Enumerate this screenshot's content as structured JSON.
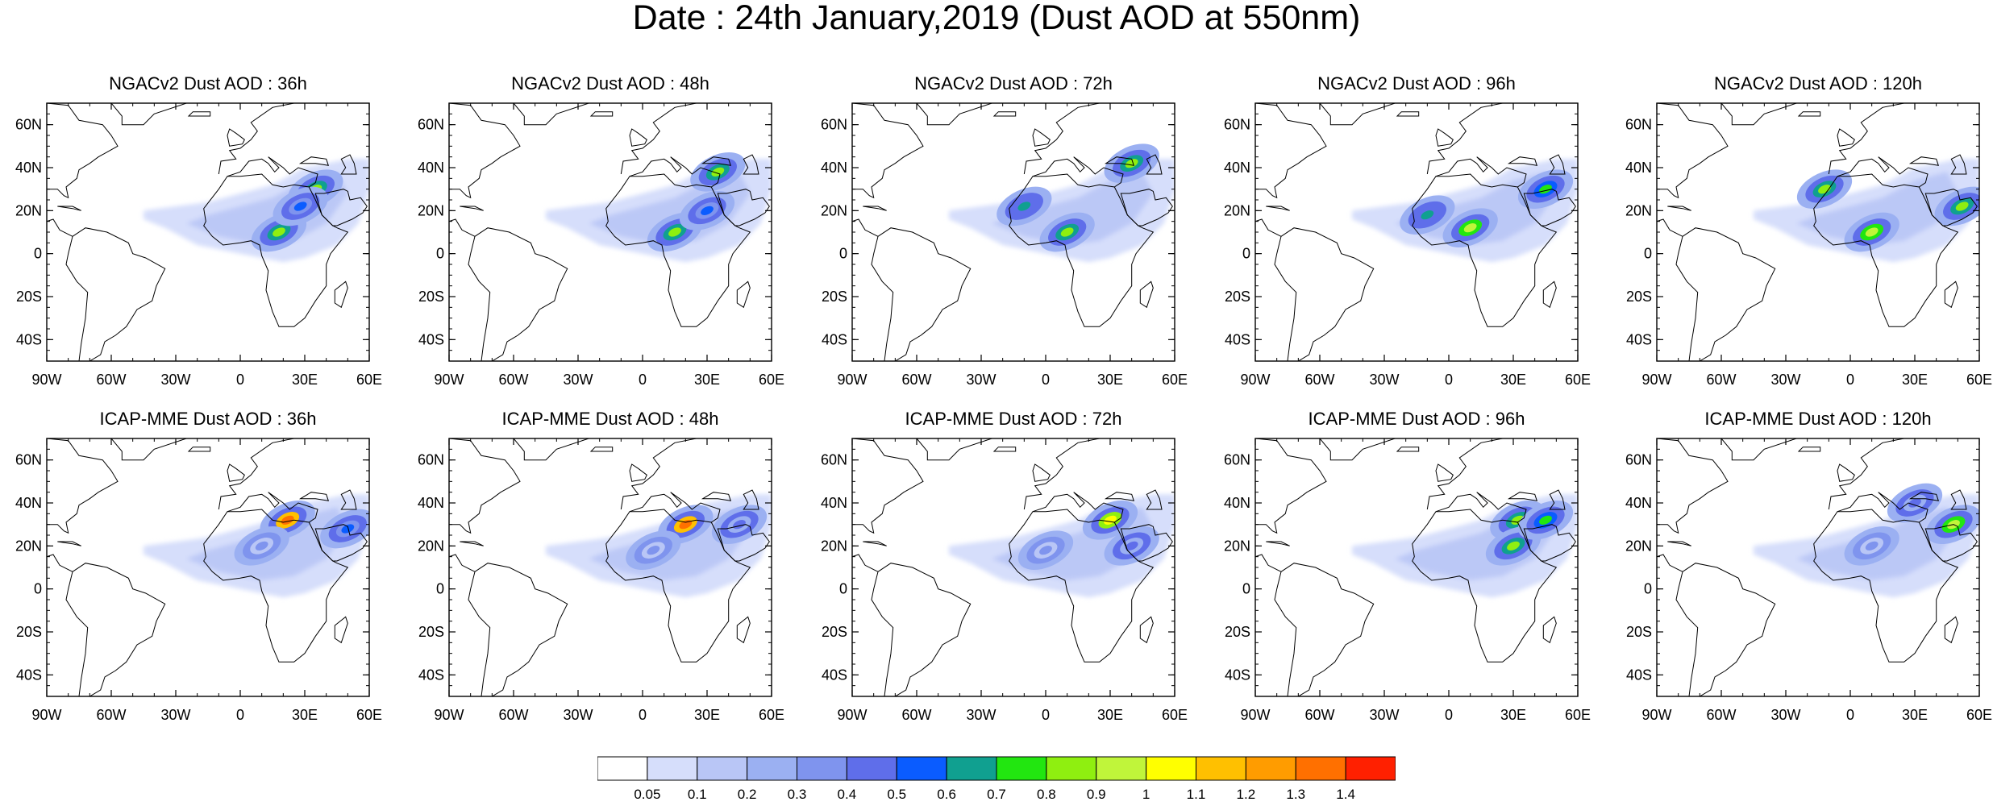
{
  "title": "Date : 24th January,2019 (Dust AOD at 550nm)",
  "lon_ticks": [
    "90W",
    "60W",
    "30W",
    "0",
    "30E",
    "60E"
  ],
  "lat_ticks": [
    "60N",
    "40N",
    "20N",
    "0",
    "20S",
    "40S"
  ],
  "panels": [
    {
      "title": "NGACv2 Dust AOD : 36h",
      "model": "NGACv2",
      "lead": "36h",
      "row": 0,
      "col": 0,
      "hotspots": [
        {
          "lon": 18,
          "lat": 10,
          "level": 9
        },
        {
          "lon": 35,
          "lat": 30,
          "level": 9
        },
        {
          "lon": 28,
          "lat": 22,
          "level": 6
        }
      ]
    },
    {
      "title": "NGACv2 Dust AOD : 48h",
      "model": "NGACv2",
      "lead": "48h",
      "row": 0,
      "col": 1,
      "hotspots": [
        {
          "lon": 15,
          "lat": 10,
          "level": 9
        },
        {
          "lon": 35,
          "lat": 38,
          "level": 9
        },
        {
          "lon": 30,
          "lat": 20,
          "level": 6
        }
      ]
    },
    {
      "title": "NGACv2 Dust AOD : 72h",
      "model": "NGACv2",
      "lead": "72h",
      "row": 0,
      "col": 2,
      "hotspots": [
        {
          "lon": 10,
          "lat": 10,
          "level": 9
        },
        {
          "lon": 40,
          "lat": 42,
          "level": 9
        },
        {
          "lon": -10,
          "lat": 22,
          "level": 7
        }
      ]
    },
    {
      "title": "NGACv2 Dust AOD : 96h",
      "model": "NGACv2",
      "lead": "96h",
      "row": 0,
      "col": 3,
      "hotspots": [
        {
          "lon": 10,
          "lat": 12,
          "level": 10
        },
        {
          "lon": 45,
          "lat": 30,
          "level": 8
        },
        {
          "lon": -10,
          "lat": 18,
          "level": 7
        }
      ]
    },
    {
      "title": "NGACv2 Dust AOD : 120h",
      "model": "NGACv2",
      "lead": "120h",
      "row": 0,
      "col": 4,
      "hotspots": [
        {
          "lon": 10,
          "lat": 10,
          "level": 10
        },
        {
          "lon": -12,
          "lat": 30,
          "level": 9
        },
        {
          "lon": 52,
          "lat": 22,
          "level": 9
        }
      ]
    },
    {
      "title": "ICAP-MME Dust AOD : 36h",
      "model": "ICAP-MME",
      "lead": "36h",
      "row": 1,
      "col": 0,
      "hotspots": [
        {
          "lon": 22,
          "lat": 32,
          "level": 14
        },
        {
          "lon": 50,
          "lat": 28,
          "level": 6
        },
        {
          "lon": 10,
          "lat": 20,
          "level": 4
        }
      ]
    },
    {
      "title": "ICAP-MME Dust AOD : 48h",
      "model": "ICAP-MME",
      "lead": "48h",
      "row": 1,
      "col": 1,
      "hotspots": [
        {
          "lon": 20,
          "lat": 30,
          "level": 14
        },
        {
          "lon": 45,
          "lat": 30,
          "level": 5
        },
        {
          "lon": 5,
          "lat": 18,
          "level": 4
        }
      ]
    },
    {
      "title": "ICAP-MME Dust AOD : 72h",
      "model": "ICAP-MME",
      "lead": "72h",
      "row": 1,
      "col": 2,
      "hotspots": [
        {
          "lon": 30,
          "lat": 32,
          "level": 11
        },
        {
          "lon": 40,
          "lat": 20,
          "level": 5
        },
        {
          "lon": 0,
          "lat": 18,
          "level": 4
        }
      ]
    },
    {
      "title": "ICAP-MME Dust AOD : 96h",
      "model": "ICAP-MME",
      "lead": "96h",
      "row": 1,
      "col": 3,
      "hotspots": [
        {
          "lon": 32,
          "lat": 32,
          "level": 9
        },
        {
          "lon": 30,
          "lat": 20,
          "level": 9
        },
        {
          "lon": 45,
          "lat": 32,
          "level": 8
        }
      ]
    },
    {
      "title": "ICAP-MME Dust AOD : 120h",
      "model": "ICAP-MME",
      "lead": "120h",
      "row": 1,
      "col": 4,
      "hotspots": [
        {
          "lon": 48,
          "lat": 30,
          "level": 10
        },
        {
          "lon": 30,
          "lat": 40,
          "level": 5
        },
        {
          "lon": 10,
          "lat": 20,
          "level": 4
        }
      ]
    }
  ],
  "colorbar": {
    "labels": [
      "0.05",
      "0.1",
      "0.2",
      "0.3",
      "0.4",
      "0.5",
      "0.6",
      "0.7",
      "0.8",
      "0.9",
      "1",
      "1.1",
      "1.2",
      "1.3",
      "1.4"
    ],
    "colors": [
      "#ffffff",
      "#d6defb",
      "#b9c6f6",
      "#9bb0f2",
      "#7f94ee",
      "#5f6eea",
      "#0a5cff",
      "#10a090",
      "#22e610",
      "#8fef10",
      "#c0f53a",
      "#ffff00",
      "#ffc000",
      "#ff9c00",
      "#ff7000",
      "#ff2000"
    ]
  }
}
